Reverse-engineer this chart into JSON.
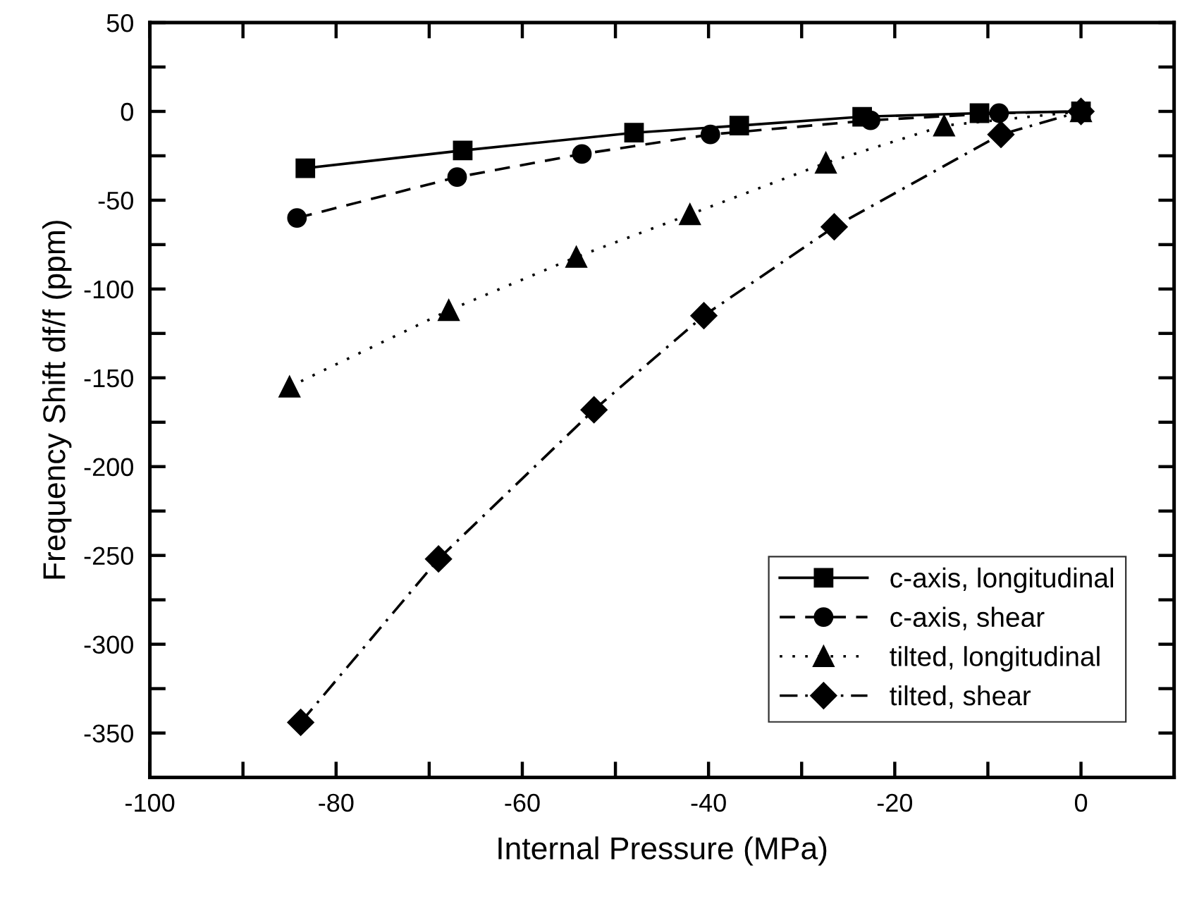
{
  "chart_data": {
    "type": "line",
    "xlabel": "Internal Pressure (MPa)",
    "ylabel": "Frequency Shift df/f (ppm)",
    "xlim": [
      -100,
      10
    ],
    "ylim": [
      -375,
      50
    ],
    "xticks": [
      -100,
      {
        "value": -90,
        "label": null
      },
      -80,
      {
        "value": -70,
        "label": null
      },
      -60,
      {
        "value": -50,
        "label": null
      },
      -40,
      {
        "value": -30,
        "label": null
      },
      -20,
      {
        "value": -10,
        "label": null
      },
      0
    ],
    "yticks": [
      50,
      {
        "value": 25,
        "label": null
      },
      0,
      {
        "value": -25,
        "label": null
      },
      -50,
      {
        "value": -75,
        "label": null
      },
      -100,
      {
        "value": -125,
        "label": null
      },
      -150,
      {
        "value": -175,
        "label": null
      },
      -200,
      {
        "value": -225,
        "label": null
      },
      -250,
      {
        "value": -275,
        "label": null
      },
      -300,
      {
        "value": -325,
        "label": null
      },
      -350
    ],
    "grid": false,
    "legend": "bottom right",
    "series": [
      {
        "name": "c-axis, longitudinal",
        "color": "#000000",
        "marker": "square",
        "line_style": "solid",
        "x": [
          -83.3,
          -66.4,
          -48,
          -36.7,
          -23.5,
          -10.9,
          0
        ],
        "values": [
          -32,
          -22,
          -12,
          -8,
          -3,
          -1,
          0
        ]
      },
      {
        "name": "c-axis, shear",
        "color": "#000000",
        "marker": "circle",
        "line_style": "dashed",
        "x": [
          -84.2,
          -67,
          -53.6,
          -39.8,
          -22.6,
          -8.8,
          0
        ],
        "values": [
          -60,
          -37,
          -24,
          -13,
          -5,
          -1,
          0
        ]
      },
      {
        "name": "tilted, longitudinal",
        "color": "#000000",
        "marker": "triangle",
        "line_style": "dotted",
        "x": [
          -85,
          -67.9,
          -54.2,
          -42,
          -27.4,
          -14.7,
          0
        ],
        "values": [
          -155,
          -112,
          -82,
          -58,
          -29,
          -8,
          0
        ]
      },
      {
        "name": "tilted, shear",
        "color": "#000000",
        "marker": "diamond",
        "line_style": "dashdot",
        "x": [
          -83.8,
          -69,
          -52.3,
          -40.5,
          -26.5,
          -8.6,
          0
        ],
        "values": [
          -344,
          -252,
          -168,
          -115,
          -65,
          -13,
          0
        ]
      }
    ]
  }
}
